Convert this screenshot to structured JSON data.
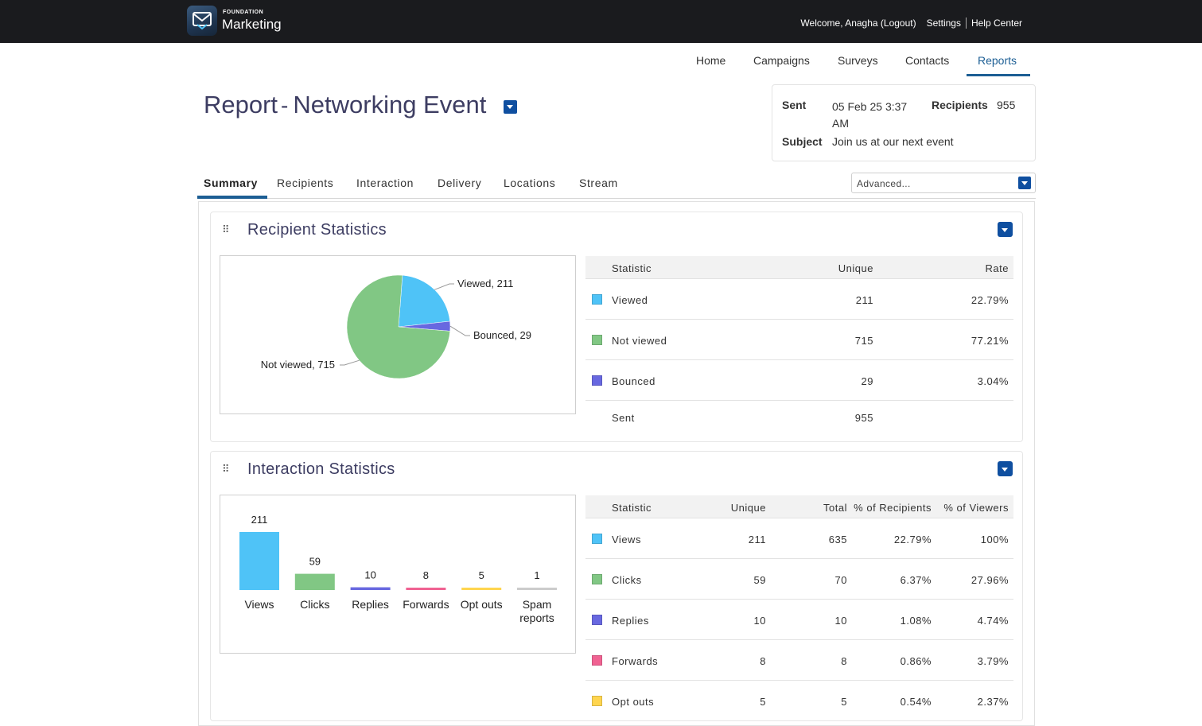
{
  "header": {
    "brand_small": "FOUNDATION",
    "brand_name": "Marketing",
    "welcome": "Welcome, Anagha (Logout)",
    "settings": "Settings",
    "help": "Help Center"
  },
  "nav": {
    "items": [
      "Home",
      "Campaigns",
      "Surveys",
      "Contacts",
      "Reports"
    ],
    "active": "Reports"
  },
  "report": {
    "title_prefix": "Report",
    "title_dash": "-",
    "title_name": "Networking Event"
  },
  "info": {
    "sent_label": "Sent",
    "sent_value": "05 Feb 25 3:37 AM",
    "recipients_label": "Recipients",
    "recipients_value": "955",
    "subject_label": "Subject",
    "subject_value": "Join us at our next event"
  },
  "tabs": [
    "Summary",
    "Recipients",
    "Interaction",
    "Delivery",
    "Locations",
    "Stream"
  ],
  "active_tab": "Summary",
  "advanced_select": {
    "value": "Advanced..."
  },
  "colors": {
    "viewed": "#4fc3f7",
    "not_viewed": "#81c784",
    "bounced": "#6868e0",
    "forwards": "#f06292",
    "opt_outs": "#ffd54f",
    "spam": "#cccccc",
    "accent": "#1c5e94",
    "button": "#0f4fa0"
  },
  "recipient_stats": {
    "title": "Recipient Statistics",
    "headers": {
      "statistic": "Statistic",
      "unique": "Unique",
      "rate": "Rate"
    },
    "rows": [
      {
        "label": "Viewed",
        "unique": "211",
        "rate": "22.79%",
        "color": "#4fc3f7"
      },
      {
        "label": "Not viewed",
        "unique": "715",
        "rate": "77.21%",
        "color": "#81c784"
      },
      {
        "label": "Bounced",
        "unique": "29",
        "rate": "3.04%",
        "color": "#6868e0"
      },
      {
        "label": "Sent",
        "unique": "955",
        "rate": "",
        "color": ""
      }
    ],
    "pie_labels": [
      "Viewed, 211",
      "Bounced, 29",
      "Not viewed, 715"
    ]
  },
  "interaction_stats": {
    "title": "Interaction Statistics",
    "headers": {
      "statistic": "Statistic",
      "unique": "Unique",
      "total": "Total",
      "pct_recipients": "% of Recipients",
      "pct_viewers": "% of Viewers"
    },
    "rows": [
      {
        "label": "Views",
        "unique": "211",
        "total": "635",
        "pct_recipients": "22.79%",
        "pct_viewers": "100%",
        "color": "#4fc3f7"
      },
      {
        "label": "Clicks",
        "unique": "59",
        "total": "70",
        "pct_recipients": "6.37%",
        "pct_viewers": "27.96%",
        "color": "#81c784"
      },
      {
        "label": "Replies",
        "unique": "10",
        "total": "10",
        "pct_recipients": "1.08%",
        "pct_viewers": "4.74%",
        "color": "#6868e0"
      },
      {
        "label": "Forwards",
        "unique": "8",
        "total": "8",
        "pct_recipients": "0.86%",
        "pct_viewers": "3.79%",
        "color": "#f06292"
      },
      {
        "label": "Opt outs",
        "unique": "5",
        "total": "5",
        "pct_recipients": "0.54%",
        "pct_viewers": "2.37%",
        "color": "#ffd54f"
      }
    ]
  },
  "chart_data": [
    {
      "type": "pie",
      "title": "",
      "labels": [
        "Viewed",
        "Bounced",
        "Not viewed"
      ],
      "values": [
        211,
        29,
        715
      ],
      "colors": [
        "#4fc3f7",
        "#6868e0",
        "#81c784"
      ]
    },
    {
      "type": "bar",
      "title": "",
      "categories": [
        "Views",
        "Clicks",
        "Replies",
        "Forwards",
        "Opt outs",
        "Spam reports"
      ],
      "values": [
        211,
        59,
        10,
        8,
        5,
        1
      ],
      "colors": [
        "#4fc3f7",
        "#81c784",
        "#6868e0",
        "#f06292",
        "#ffd54f",
        "#cccccc"
      ]
    }
  ]
}
